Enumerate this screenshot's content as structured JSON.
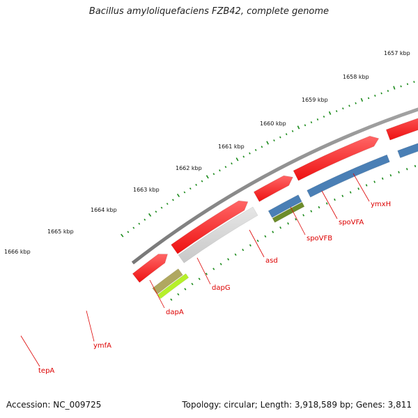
{
  "title": "Bacillus amyloliquefaciens FZB42, complete genome",
  "accession": "Accession: NC_009725",
  "summary": "Topology: circular; Length: 3,918,589 bp; Genes: 3,811",
  "ticks": [
    "1657 kbp",
    "1658 kbp",
    "1659 kbp",
    "1660 kbp",
    "1661 kbp",
    "1662 kbp",
    "1663 kbp",
    "1664 kbp",
    "1665 kbp",
    "1666 kbp"
  ],
  "genes": [
    "ymxH",
    "spoVFA",
    "spoVFB",
    "asd",
    "dapG",
    "dapA",
    "ymfA",
    "tepA"
  ],
  "colors": {
    "cds_forward": "#ee1111",
    "cds_reverse": "#c8c8c8",
    "tick_green": "#1a8a1a",
    "label_red": "#dd0000",
    "backbone": "#777777",
    "cog_blue": "#2244ee",
    "cog_steel": "#4a7fb5",
    "cog_olive": "#6d8c2a",
    "cog_lime": "#b6f02a",
    "cog_khaki": "#b0a860",
    "cog_dark": "#555555",
    "cog_cyan": "#22cccc"
  }
}
